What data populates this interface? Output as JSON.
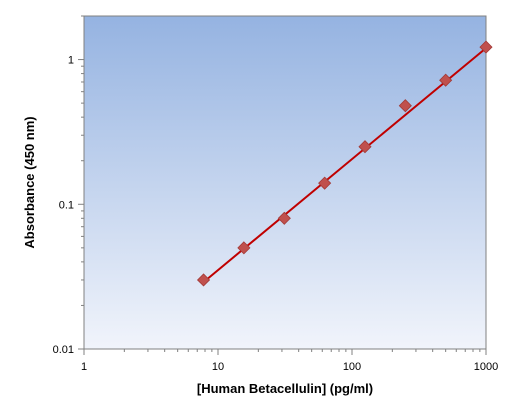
{
  "chart_data": {
    "type": "scatter",
    "title": "",
    "xlabel": "[Human Betacellulin] (pg/ml)",
    "ylabel": "Absorbance (450 nm)",
    "x_scale": "log",
    "y_scale": "log",
    "xlim": [
      1,
      1000
    ],
    "ylim": [
      0.01,
      2
    ],
    "x_ticks": [
      {
        "value": 1,
        "label": "1"
      },
      {
        "value": 10,
        "label": "10"
      },
      {
        "value": 100,
        "label": "100"
      },
      {
        "value": 1000,
        "label": "1000"
      }
    ],
    "y_ticks": [
      {
        "value": 0.01,
        "label": "0.01"
      },
      {
        "value": 0.1,
        "label": "0.1"
      },
      {
        "value": 1,
        "label": "1"
      }
    ],
    "grid": false,
    "legend": "none",
    "series": [
      {
        "x": [
          7.8,
          15.6,
          31.25,
          62.5,
          125,
          250,
          500,
          1000
        ],
        "y": [
          0.03,
          0.05,
          0.08,
          0.14,
          0.25,
          0.48,
          0.72,
          1.22
        ]
      }
    ],
    "fit_line": {
      "x": [
        7.8,
        1000
      ],
      "y": [
        0.029,
        1.2
      ]
    },
    "colors": {
      "plot_bg_top": "#95b3e1",
      "plot_bg_bottom": "#f1f4fb",
      "marker": "#c0504d",
      "line": "#c00000",
      "axis": "#808080"
    }
  }
}
